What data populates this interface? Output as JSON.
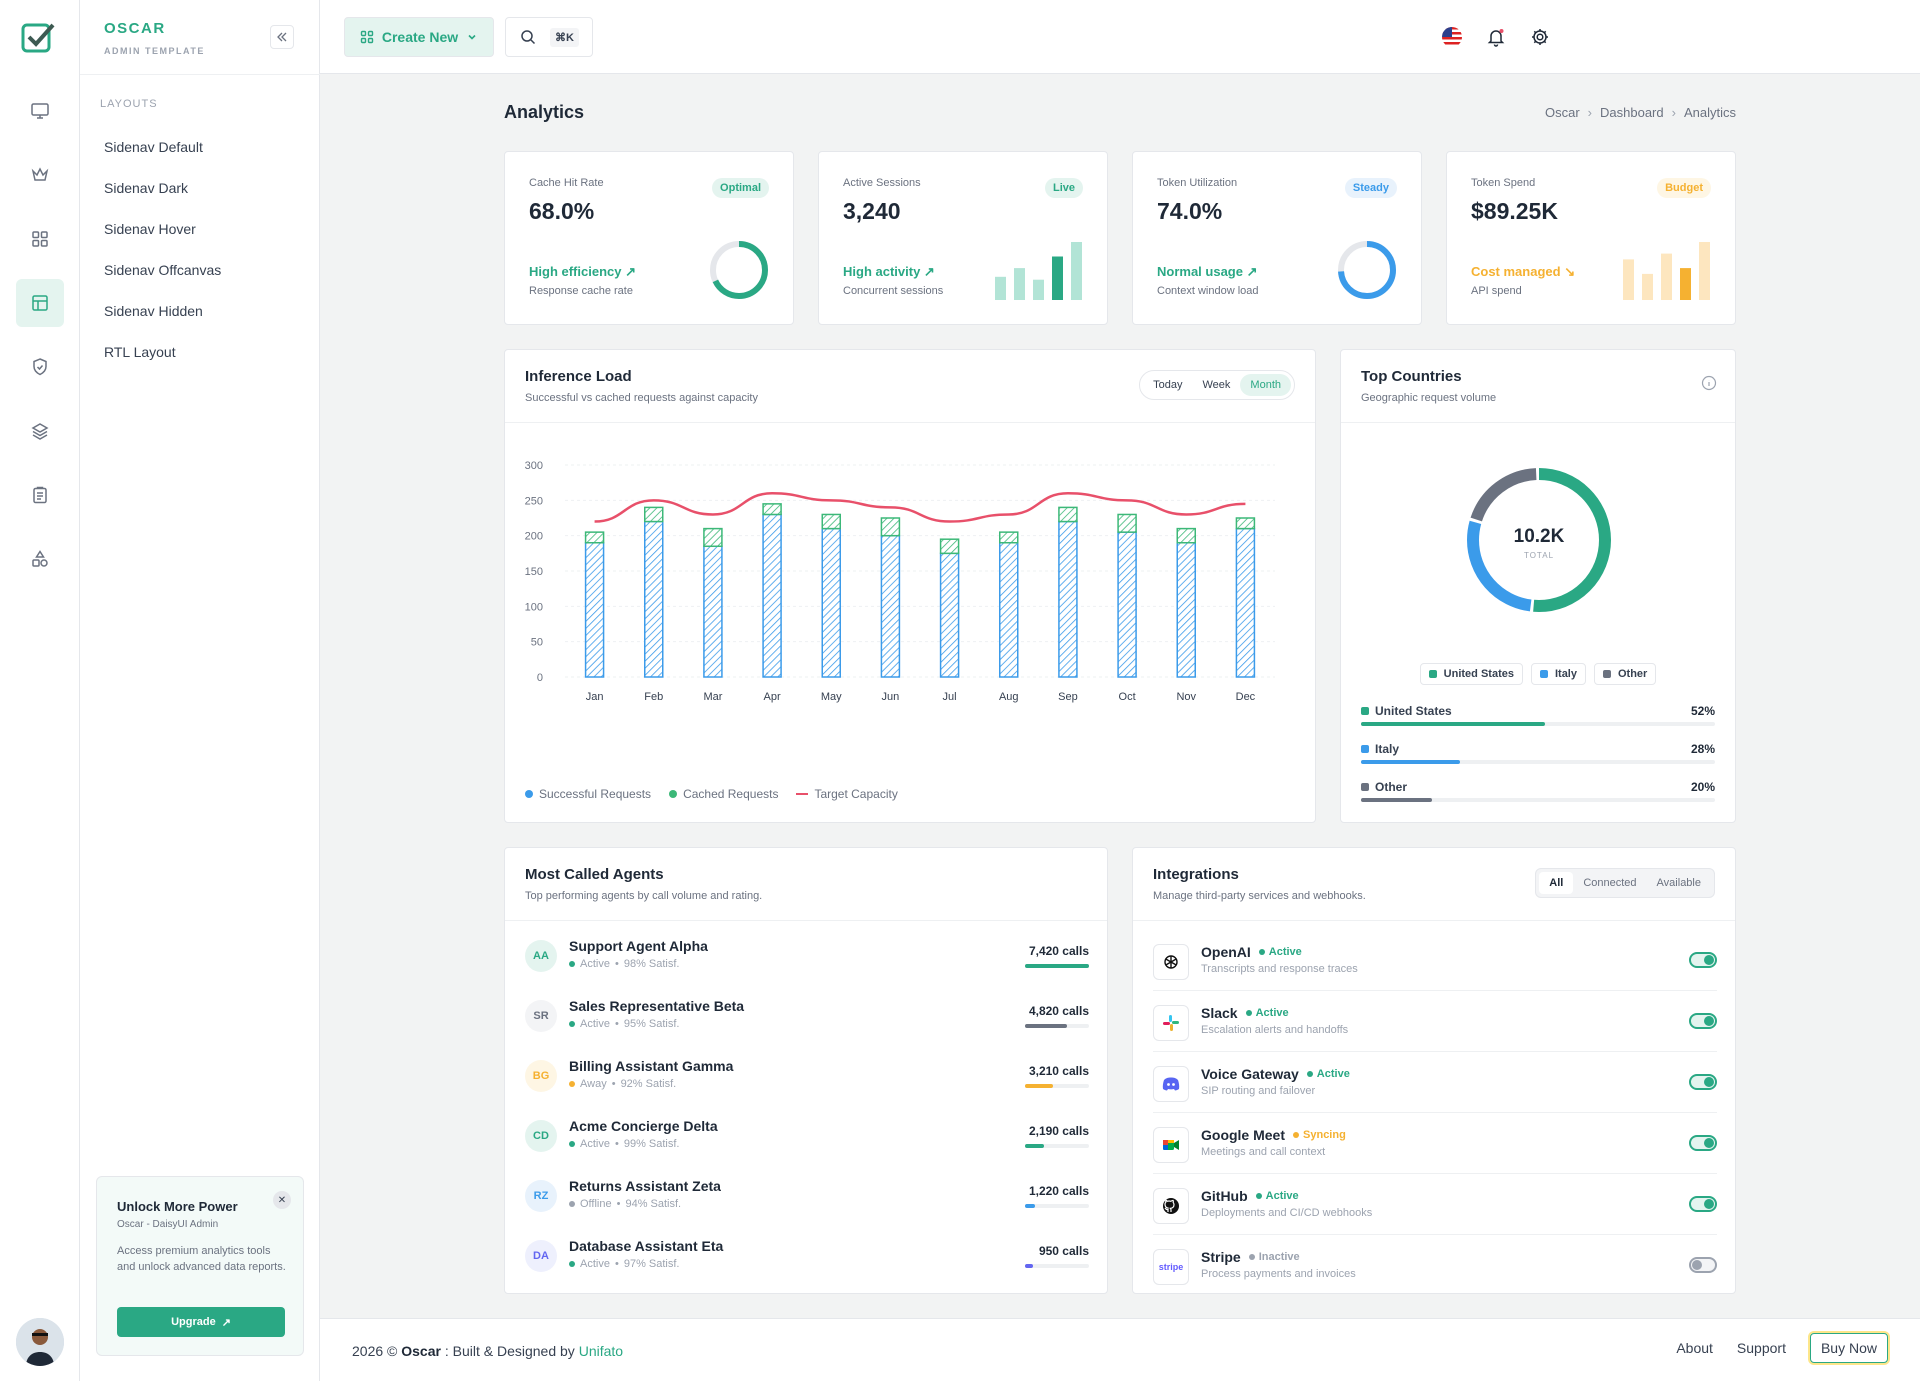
{
  "sidebar": {
    "brand": "OSCAR",
    "brand_sub": "ADMIN TEMPLATE",
    "section": "LAYOUTS",
    "items": [
      "Sidenav Default",
      "Sidenav Dark",
      "Sidenav Hover",
      "Sidenav Offcanvas",
      "Sidenav Hidden",
      "RTL Layout"
    ],
    "promo": {
      "title": "Unlock More Power",
      "subtitle": "Oscar - DaisyUI Admin",
      "desc": "Access premium analytics tools and unlock advanced data reports.",
      "button": "Upgrade"
    }
  },
  "topbar": {
    "create": "Create New",
    "kbd": "⌘K"
  },
  "page": {
    "title": "Analytics",
    "breadcrumb": [
      "Oscar",
      "Dashboard",
      "Analytics"
    ]
  },
  "kpis": [
    {
      "label": "Cache Hit Rate",
      "value": "68.0%",
      "badge": "Optimal",
      "trend": "High efficiency",
      "sub": "Response cache rate",
      "ring": 0.68
    },
    {
      "label": "Active Sessions",
      "value": "3,240",
      "badge": "Live",
      "trend": "High activity",
      "sub": "Concurrent sessions",
      "bars": [
        0.4,
        0.55,
        0.35,
        0.75,
        1.0
      ]
    },
    {
      "label": "Token Utilization",
      "value": "74.0%",
      "badge": "Steady",
      "trend": "Normal usage",
      "sub": "Context window load",
      "ring": 0.74
    },
    {
      "label": "Token Spend",
      "value": "$89.25K",
      "badge": "Budget",
      "trend": "Cost managed",
      "sub": "API spend",
      "bars": [
        0.7,
        0.45,
        0.8,
        0.55,
        1.0
      ]
    }
  ],
  "colors": {
    "accent": "#2aa884",
    "blue": "#3b9bea",
    "red": "#e8506a",
    "amber": "#f5b131",
    "gray": "#6b7280"
  },
  "inference": {
    "title": "Inference Load",
    "subtitle": "Successful vs cached requests against capacity",
    "tabs": [
      "Today",
      "Week",
      "Month"
    ],
    "active_tab": "Month",
    "legend": [
      "Successful Requests",
      "Cached Requests",
      "Target Capacity"
    ]
  },
  "chart_data": {
    "type": "bar",
    "categories": [
      "Jan",
      "Feb",
      "Mar",
      "Apr",
      "May",
      "Jun",
      "Jul",
      "Aug",
      "Sep",
      "Oct",
      "Nov",
      "Dec"
    ],
    "series": [
      {
        "name": "Successful Requests",
        "values": [
          190,
          220,
          185,
          230,
          210,
          200,
          175,
          190,
          220,
          205,
          190,
          210
        ]
      },
      {
        "name": "Cached Requests",
        "values": [
          15,
          20,
          25,
          15,
          20,
          25,
          20,
          15,
          20,
          25,
          20,
          15
        ]
      },
      {
        "name": "Target Capacity",
        "type": "line",
        "values": [
          220,
          250,
          230,
          260,
          250,
          240,
          220,
          230,
          260,
          250,
          230,
          245
        ]
      }
    ],
    "yticks": [
      0,
      50,
      100,
      150,
      200,
      250,
      300
    ],
    "ylim": [
      0,
      300
    ],
    "stacked": true,
    "grid": true
  },
  "countries": {
    "title": "Top Countries",
    "subtitle": "Geographic request volume",
    "total": "10.2K",
    "total_label": "TOTAL",
    "items": [
      {
        "name": "United States",
        "pct": "52%",
        "value": 0.52,
        "color": "#2aa884"
      },
      {
        "name": "Italy",
        "pct": "28%",
        "value": 0.28,
        "color": "#3b9bea"
      },
      {
        "name": "Other",
        "pct": "20%",
        "value": 0.2,
        "color": "#6b7280"
      }
    ]
  },
  "agents": {
    "title": "Most Called Agents",
    "subtitle": "Top performing agents by call volume and rating.",
    "items": [
      {
        "initials": "AA",
        "name": "Support Agent Alpha",
        "status": "Active",
        "satisf": "98% Satisf.",
        "calls": "7,420 calls",
        "fill": 1.0,
        "color": "#2aa884",
        "bg": "#e4f4ef",
        "dot": "#2aa884"
      },
      {
        "initials": "SR",
        "name": "Sales Representative Beta",
        "status": "Active",
        "satisf": "95% Satisf.",
        "calls": "4,820 calls",
        "fill": 0.65,
        "color": "#6b7280",
        "bg": "#f3f4f6",
        "dot": "#2aa884"
      },
      {
        "initials": "BG",
        "name": "Billing Assistant Gamma",
        "status": "Away",
        "satisf": "92% Satisf.",
        "calls": "3,210 calls",
        "fill": 0.43,
        "color": "#f5b131",
        "bg": "#fef6e4",
        "dot": "#f5b131"
      },
      {
        "initials": "CD",
        "name": "Acme Concierge Delta",
        "status": "Active",
        "satisf": "99% Satisf.",
        "calls": "2,190 calls",
        "fill": 0.3,
        "color": "#2aa884",
        "bg": "#e4f4ef",
        "dot": "#2aa884"
      },
      {
        "initials": "RZ",
        "name": "Returns Assistant Zeta",
        "status": "Offline",
        "satisf": "94% Satisf.",
        "calls": "1,220 calls",
        "fill": 0.16,
        "color": "#3b9bea",
        "bg": "#e8f2fc",
        "dot": "#9ca3af"
      },
      {
        "initials": "DA",
        "name": "Database Assistant Eta",
        "status": "Active",
        "satisf": "97% Satisf.",
        "calls": "950 calls",
        "fill": 0.12,
        "color": "#6366f1",
        "bg": "#eef0fd",
        "dot": "#2aa884"
      }
    ]
  },
  "integrations": {
    "title": "Integrations",
    "subtitle": "Manage third-party services and webhooks.",
    "tabs": [
      "All",
      "Connected",
      "Available"
    ],
    "active_tab": "All",
    "items": [
      {
        "name": "OpenAI",
        "status": "Active",
        "desc": "Transcripts and response traces",
        "on": true,
        "scolor": "#2aa884",
        "icon": "openai-icon"
      },
      {
        "name": "Slack",
        "status": "Active",
        "desc": "Escalation alerts and handoffs",
        "on": true,
        "scolor": "#2aa884",
        "icon": "slack-icon"
      },
      {
        "name": "Voice Gateway",
        "status": "Active",
        "desc": "SIP routing and failover",
        "on": true,
        "scolor": "#2aa884",
        "icon": "discord-icon"
      },
      {
        "name": "Google Meet",
        "status": "Syncing",
        "desc": "Meetings and call context",
        "on": true,
        "scolor": "#f5b131",
        "icon": "google-meet-icon"
      },
      {
        "name": "GitHub",
        "status": "Active",
        "desc": "Deployments and CI/CD webhooks",
        "on": true,
        "scolor": "#2aa884",
        "icon": "github-icon"
      },
      {
        "name": "Stripe",
        "status": "Inactive",
        "desc": "Process payments and invoices",
        "on": false,
        "scolor": "#9ca3af",
        "icon": "stripe-icon",
        "logo": "stripe"
      }
    ]
  },
  "footer": {
    "year": "2026 ©",
    "brand": "Oscar",
    "built": ": Built & Designed by",
    "author": "Unifato",
    "links": [
      "About",
      "Support",
      "Buy Now"
    ]
  }
}
